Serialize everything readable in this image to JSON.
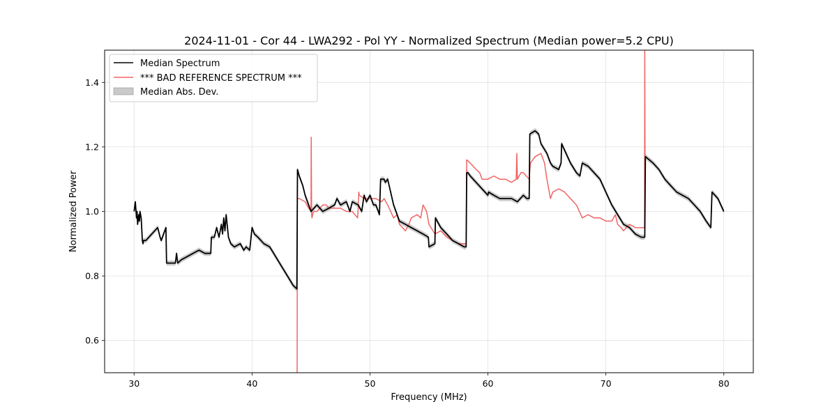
{
  "chart_data": {
    "type": "line",
    "title": "2024-11-01 - Cor 44 - LWA292 - Pol YY - Normalized Spectrum (Median power=5.2 CPU)",
    "xlabel": "Frequency (MHz)",
    "ylabel": "Normalized Power",
    "xlim": [
      27.5,
      82.5
    ],
    "ylim": [
      0.5,
      1.5
    ],
    "xticks": [
      30,
      40,
      50,
      60,
      70,
      80
    ],
    "yticks": [
      0.6,
      0.8,
      1.0,
      1.2,
      1.4
    ],
    "xtick_labels": [
      "30",
      "40",
      "50",
      "60",
      "70",
      "80"
    ],
    "ytick_labels": [
      "0.6",
      "0.8",
      "1.0",
      "1.2",
      "1.4"
    ],
    "grid": true,
    "legend_position": "upper-left",
    "legend": [
      "Median Spectrum",
      "*** BAD REFERENCE SPECTRUM ***",
      "Median Abs. Dev."
    ],
    "colors": {
      "median": "#000000",
      "reference": "#f06464",
      "mad": "#b4b4b4"
    },
    "band_halfwidth": 0.008,
    "series": [
      {
        "name": "Median Spectrum",
        "x": [
          30.0,
          30.1,
          30.2,
          30.25,
          30.3,
          30.4,
          30.45,
          30.5,
          30.6,
          30.7,
          30.75,
          30.8,
          31.0,
          31.5,
          32.0,
          32.2,
          32.3,
          32.5,
          32.7,
          32.75,
          33.0,
          33.5,
          33.6,
          33.7,
          34.0,
          35.0,
          35.5,
          36.0,
          36.5,
          36.55,
          36.8,
          37.0,
          37.2,
          37.4,
          37.5,
          37.6,
          37.7,
          37.8,
          38.0,
          38.2,
          38.5,
          39.0,
          39.3,
          39.5,
          39.8,
          40.0,
          40.2,
          40.5,
          41.0,
          41.5,
          42.0,
          42.5,
          43.0,
          43.5,
          43.8,
          43.85,
          44.0,
          44.3,
          44.5,
          44.8,
          45.0,
          45.5,
          46.0,
          46.5,
          47.0,
          47.2,
          47.5,
          48.0,
          48.3,
          48.5,
          49.0,
          49.3,
          49.5,
          49.7,
          50.0,
          50.3,
          50.5,
          50.8,
          50.9,
          51.2,
          51.3,
          51.5,
          52.0,
          52.5,
          53.0,
          53.5,
          54.0,
          54.5,
          54.95,
          55.0,
          55.5,
          55.55,
          56.0,
          56.5,
          57.0,
          57.5,
          58.0,
          58.15,
          58.2,
          58.3,
          58.5,
          59.0,
          59.5,
          60.0,
          60.05,
          60.5,
          61.0,
          61.5,
          62.0,
          62.5,
          63.0,
          63.3,
          63.5,
          63.55,
          64.0,
          64.3,
          64.5,
          65.0,
          65.3,
          65.5,
          66.0,
          66.2,
          66.25,
          67.0,
          67.5,
          67.8,
          68.0,
          68.5,
          69.0,
          69.5,
          70.0,
          70.5,
          71.0,
          71.5,
          72.0,
          72.5,
          73.0,
          73.3,
          73.35,
          74.0,
          74.5,
          75.0,
          75.5,
          76.0,
          76.5,
          77.0,
          77.5,
          78.0,
          78.5,
          78.9,
          79.0,
          79.5,
          80.0
        ],
        "values": [
          1.0,
          1.03,
          0.98,
          1.0,
          0.96,
          0.99,
          0.97,
          1.0,
          0.98,
          0.91,
          0.9,
          0.91,
          0.91,
          0.93,
          0.95,
          0.92,
          0.91,
          0.93,
          0.95,
          0.84,
          0.84,
          0.84,
          0.87,
          0.84,
          0.85,
          0.87,
          0.88,
          0.87,
          0.87,
          0.92,
          0.92,
          0.95,
          0.92,
          0.96,
          0.93,
          0.98,
          0.94,
          0.99,
          0.92,
          0.9,
          0.89,
          0.9,
          0.88,
          0.89,
          0.88,
          0.95,
          0.93,
          0.92,
          0.9,
          0.89,
          0.86,
          0.83,
          0.8,
          0.77,
          0.76,
          1.13,
          1.11,
          1.08,
          1.05,
          1.02,
          1.0,
          1.02,
          1.0,
          1.01,
          1.02,
          1.04,
          1.02,
          1.03,
          1.0,
          1.03,
          1.02,
          1.0,
          1.05,
          1.03,
          1.05,
          1.02,
          1.02,
          0.99,
          1.1,
          1.1,
          1.09,
          1.1,
          1.02,
          0.97,
          0.96,
          0.95,
          0.94,
          0.93,
          0.92,
          0.89,
          0.9,
          0.98,
          0.95,
          0.93,
          0.91,
          0.9,
          0.89,
          0.89,
          1.12,
          1.12,
          1.11,
          1.09,
          1.07,
          1.05,
          1.06,
          1.05,
          1.04,
          1.04,
          1.04,
          1.03,
          1.05,
          1.04,
          1.04,
          1.24,
          1.25,
          1.24,
          1.21,
          1.18,
          1.15,
          1.14,
          1.13,
          1.15,
          1.21,
          1.15,
          1.12,
          1.11,
          1.15,
          1.14,
          1.12,
          1.1,
          1.06,
          1.02,
          0.99,
          0.96,
          0.95,
          0.93,
          0.92,
          0.92,
          1.17,
          1.15,
          1.13,
          1.1,
          1.08,
          1.06,
          1.05,
          1.04,
          1.02,
          1.0,
          0.97,
          0.95,
          1.06,
          1.04,
          1.0
        ]
      },
      {
        "name": "*** BAD REFERENCE SPECTRUM ***",
        "x": [
          43.82,
          43.84,
          43.86,
          44.0,
          44.5,
          44.8,
          45.0,
          45.02,
          45.05,
          45.08,
          45.2,
          45.5,
          46.0,
          46.3,
          46.5,
          47.0,
          47.5,
          48.0,
          48.5,
          48.95,
          49.0,
          49.05,
          49.1,
          49.5,
          50.0,
          50.5,
          51.0,
          51.2,
          51.5,
          52.0,
          52.3,
          52.5,
          53.0,
          53.3,
          53.5,
          54.0,
          54.3,
          54.5,
          54.8,
          55.0,
          55.5,
          56.0,
          56.5,
          57.0,
          57.5,
          58.0,
          58.15,
          58.2,
          58.5,
          59.0,
          59.3,
          59.5,
          60.0,
          60.5,
          61.0,
          61.5,
          62.0,
          62.4,
          62.45,
          62.5,
          62.8,
          63.0,
          63.5,
          63.6,
          64.0,
          64.5,
          64.8,
          65.0,
          65.3,
          65.5,
          66.0,
          66.5,
          67.0,
          67.5,
          68.0,
          68.5,
          69.0,
          69.5,
          70.0,
          70.5,
          70.8,
          71.0,
          71.3,
          71.5,
          72.0,
          72.5,
          73.0,
          73.28,
          73.3,
          73.32
        ],
        "values": [
          0.5,
          1.04,
          1.04,
          1.04,
          1.03,
          1.01,
          1.0,
          1.23,
          0.99,
          0.98,
          1.0,
          1.0,
          1.02,
          1.02,
          1.01,
          1.01,
          1.01,
          1.0,
          1.0,
          0.98,
          1.01,
          1.06,
          1.05,
          1.04,
          1.04,
          1.04,
          1.03,
          1.04,
          1.02,
          0.98,
          0.99,
          0.96,
          0.94,
          0.96,
          0.98,
          0.99,
          0.98,
          1.02,
          1.0,
          0.96,
          0.93,
          0.94,
          0.92,
          0.91,
          0.9,
          0.9,
          0.9,
          1.16,
          1.15,
          1.13,
          1.12,
          1.1,
          1.1,
          1.11,
          1.1,
          1.1,
          1.09,
          1.1,
          1.18,
          1.1,
          1.12,
          1.12,
          1.1,
          1.15,
          1.17,
          1.18,
          1.15,
          1.1,
          1.04,
          1.06,
          1.07,
          1.06,
          1.04,
          1.02,
          0.98,
          0.99,
          0.98,
          0.98,
          0.97,
          0.97,
          0.99,
          0.96,
          0.95,
          0.94,
          0.96,
          0.95,
          0.95,
          0.95,
          1.5,
          1.17
        ]
      }
    ]
  }
}
